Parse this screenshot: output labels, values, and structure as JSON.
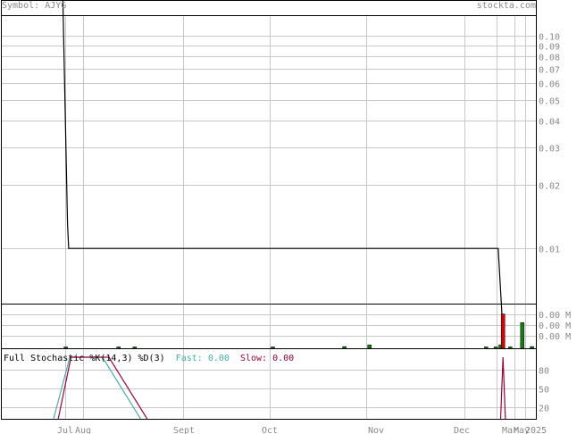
{
  "header": {
    "symbol_label": "Symbol:",
    "symbol": "AJYG",
    "site": "stockta.com"
  },
  "colors": {
    "grid": "#c8c8c8",
    "frame": "#000000",
    "price_line": "#000000",
    "volume_up": "#108010",
    "volume_down": "#e00000",
    "fast_line": "#45b0a8",
    "slow_line": "#a0003c",
    "axis_text": "#888888"
  },
  "chart_data": [
    {
      "type": "line",
      "title": "",
      "scale": "log",
      "x_labels": [
        "Jul",
        "Aug",
        "Sept",
        "Oct",
        "Nov",
        "Dec",
        "Mar",
        "May",
        "2025"
      ],
      "y_ticks": [
        "0.10",
        "0.09",
        "0.08",
        "0.07",
        "0.06",
        "0.05",
        "0.04",
        "0.03",
        "0.02",
        "0.01"
      ],
      "y_tick_values": [
        0.1,
        0.09,
        0.08,
        0.07,
        0.06,
        0.05,
        0.04,
        0.03,
        0.02,
        0.01
      ],
      "ylim": [
        0.0055,
        0.125
      ],
      "series": [
        {
          "values": [
            {
              "x": "2024-06-30",
              "y": 0.5
            },
            {
              "x": "2024-07-05",
              "y": 0.013
            },
            {
              "x": "2024-07-07",
              "y": 0.01
            },
            {
              "x": "2024-12-15",
              "y": 0.01
            },
            {
              "x": "2024-12-17",
              "y": 0.004
            }
          ]
        }
      ]
    },
    {
      "type": "bar",
      "title": "",
      "y_ticks": [
        "0.00 M",
        "0.00 M",
        "0.00 M"
      ],
      "bars": [
        {
          "x": "2024-07-02",
          "color": "up",
          "level": 0.03
        },
        {
          "x": "2024-08-12",
          "color": "up",
          "level": 0.03
        },
        {
          "x": "2024-08-17",
          "color": "up",
          "level": 0.03
        },
        {
          "x": "2024-10-02",
          "color": "up",
          "level": 0.03
        },
        {
          "x": "2024-10-25",
          "color": "up",
          "level": 0.04
        },
        {
          "x": "2024-11-02",
          "color": "up",
          "level": 0.08
        },
        {
          "x": "2024-12-10",
          "color": "up",
          "level": 0.03
        },
        {
          "x": "2024-12-14",
          "color": "up",
          "level": 0.03
        },
        {
          "x": "2024-12-16",
          "color": "up",
          "level": 0.08
        },
        {
          "x": "2024-12-17",
          "color": "down",
          "level": 0.8
        },
        {
          "x": "2024-12-20",
          "color": "up",
          "level": 0.03
        },
        {
          "x": "2024-12-25",
          "color": "up",
          "level": 0.6
        },
        {
          "x": "2024-12-29",
          "color": "up",
          "level": 0.04
        }
      ]
    },
    {
      "type": "line",
      "title": "Full Stochastic %K(14,3) %D(3)",
      "legend": {
        "fast_label": "Fast:",
        "fast_value": "0.00",
        "slow_label": "Slow:",
        "slow_value": "0.00"
      },
      "y_ticks": [
        "80",
        "50",
        "20"
      ],
      "y_tick_values": [
        80,
        50,
        20
      ],
      "ylim": [
        0,
        100
      ],
      "series": [
        {
          "name": "Fast",
          "values": [
            {
              "x": "2024-06-26",
              "y": 0
            },
            {
              "x": "2024-07-09",
              "y": 100
            },
            {
              "x": "2024-08-07",
              "y": 100
            },
            {
              "x": "2024-08-19",
              "y": 0
            },
            {
              "x": "2024-12-16",
              "y": 0
            },
            {
              "x": "2024-12-18",
              "y": 0
            }
          ]
        },
        {
          "name": "Slow",
          "values": [
            {
              "x": "2024-06-28",
              "y": 0
            },
            {
              "x": "2024-07-11",
              "y": 100
            },
            {
              "x": "2024-08-09",
              "y": 100
            },
            {
              "x": "2024-08-21",
              "y": 0
            },
            {
              "x": "2024-12-16",
              "y": 0
            },
            {
              "x": "2024-12-17",
              "y": 100
            },
            {
              "x": "2024-12-18",
              "y": 0
            }
          ]
        }
      ]
    }
  ]
}
